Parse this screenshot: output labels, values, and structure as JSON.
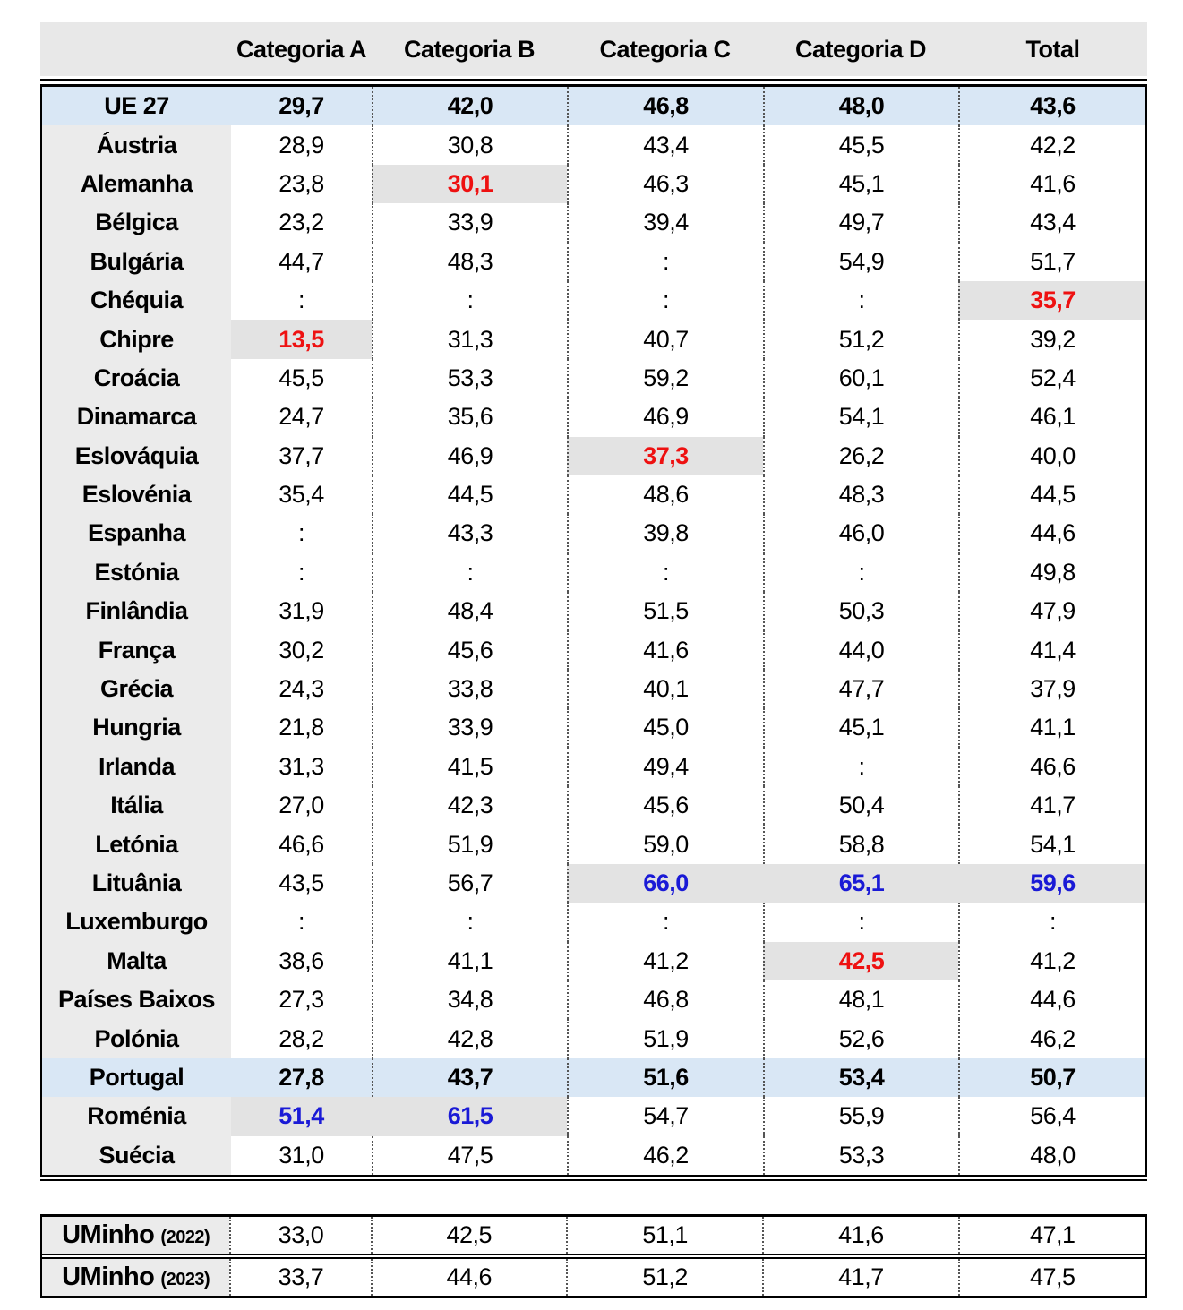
{
  "colors": {
    "header_bg": "#e8e8e8",
    "name_column_bg": "#ebebeb",
    "emphasis_row_bg": "#d9e7f5",
    "highlight_cell_bg": "#e3e3e3",
    "highlight_red_text": "#ee1111",
    "highlight_blue_text": "#1a1ad6",
    "rule_color": "#000000"
  },
  "missing_value_symbol": ":",
  "main_table": {
    "columns": [
      "",
      "Categoria A",
      "Categoria B",
      "Categoria C",
      "Categoria D",
      "Total"
    ],
    "rows": [
      {
        "name": "UE 27",
        "values": [
          "29,7",
          "42,0",
          "46,8",
          "48,0",
          "43,6"
        ],
        "emphasis": "blue-row"
      },
      {
        "name": "Áustria",
        "values": [
          "28,9",
          "30,8",
          "43,4",
          "45,5",
          "42,2"
        ]
      },
      {
        "name": "Alemanha",
        "values": [
          "23,8",
          "30,1",
          "46,3",
          "45,1",
          "41,6"
        ],
        "highlights": {
          "1": "red"
        }
      },
      {
        "name": "Bélgica",
        "values": [
          "23,2",
          "33,9",
          "39,4",
          "49,7",
          "43,4"
        ]
      },
      {
        "name": "Bulgária",
        "values": [
          "44,7",
          "48,3",
          ":",
          "54,9",
          "51,7"
        ]
      },
      {
        "name": "Chéquia",
        "values": [
          ":",
          ":",
          ":",
          ":",
          "35,7"
        ],
        "highlights": {
          "4": "red"
        }
      },
      {
        "name": "Chipre",
        "values": [
          "13,5",
          "31,3",
          "40,7",
          "51,2",
          "39,2"
        ],
        "highlights": {
          "0": "red"
        }
      },
      {
        "name": "Croácia",
        "values": [
          "45,5",
          "53,3",
          "59,2",
          "60,1",
          "52,4"
        ]
      },
      {
        "name": "Dinamarca",
        "values": [
          "24,7",
          "35,6",
          "46,9",
          "54,1",
          "46,1"
        ]
      },
      {
        "name": "Eslováquia",
        "values": [
          "37,7",
          "46,9",
          "37,3",
          "26,2",
          "40,0"
        ],
        "highlights": {
          "2": "red"
        }
      },
      {
        "name": "Eslovénia",
        "values": [
          "35,4",
          "44,5",
          "48,6",
          "48,3",
          "44,5"
        ]
      },
      {
        "name": "Espanha",
        "values": [
          ":",
          "43,3",
          "39,8",
          "46,0",
          "44,6"
        ]
      },
      {
        "name": "Estónia",
        "values": [
          ":",
          ":",
          ":",
          ":",
          "49,8"
        ]
      },
      {
        "name": "Finlândia",
        "values": [
          "31,9",
          "48,4",
          "51,5",
          "50,3",
          "47,9"
        ]
      },
      {
        "name": "França",
        "values": [
          "30,2",
          "45,6",
          "41,6",
          "44,0",
          "41,4"
        ]
      },
      {
        "name": "Grécia",
        "values": [
          "24,3",
          "33,8",
          "40,1",
          "47,7",
          "37,9"
        ]
      },
      {
        "name": "Hungria",
        "values": [
          "21,8",
          "33,9",
          "45,0",
          "45,1",
          "41,1"
        ]
      },
      {
        "name": "Irlanda",
        "values": [
          "31,3",
          "41,5",
          "49,4",
          ":",
          "46,6"
        ]
      },
      {
        "name": "Itália",
        "values": [
          "27,0",
          "42,3",
          "45,6",
          "50,4",
          "41,7"
        ]
      },
      {
        "name": "Letónia",
        "values": [
          "46,6",
          "51,9",
          "59,0",
          "58,8",
          "54,1"
        ]
      },
      {
        "name": "Lituânia",
        "values": [
          "43,5",
          "56,7",
          "66,0",
          "65,1",
          "59,6"
        ],
        "highlights": {
          "2": "blue",
          "3": "blue",
          "4": "blue"
        }
      },
      {
        "name": "Luxemburgo",
        "values": [
          ":",
          ":",
          ":",
          ":",
          ":"
        ]
      },
      {
        "name": "Malta",
        "values": [
          "38,6",
          "41,1",
          "41,2",
          "42,5",
          "41,2"
        ],
        "highlights": {
          "3": "red"
        }
      },
      {
        "name": "Países Baixos",
        "values": [
          "27,3",
          "34,8",
          "46,8",
          "48,1",
          "44,6"
        ]
      },
      {
        "name": "Polónia",
        "values": [
          "28,2",
          "42,8",
          "51,9",
          "52,6",
          "46,2"
        ]
      },
      {
        "name": "Portugal",
        "values": [
          "27,8",
          "43,7",
          "51,6",
          "53,4",
          "50,7"
        ],
        "emphasis": "blue-row"
      },
      {
        "name": "Roménia",
        "values": [
          "51,4",
          "61,5",
          "54,7",
          "55,9",
          "56,4"
        ],
        "highlights": {
          "0": "blue",
          "1": "blue"
        }
      },
      {
        "name": "Suécia",
        "values": [
          "31,0",
          "47,5",
          "46,2",
          "53,3",
          "48,0"
        ]
      }
    ]
  },
  "footer_table": {
    "rows": [
      {
        "label": "UMinho",
        "year": "(2022)",
        "values": [
          "33,0",
          "42,5",
          "51,1",
          "41,6",
          "47,1"
        ]
      },
      {
        "label": "UMinho",
        "year": "(2023)",
        "values": [
          "33,7",
          "44,6",
          "51,2",
          "41,7",
          "47,5"
        ]
      }
    ]
  }
}
